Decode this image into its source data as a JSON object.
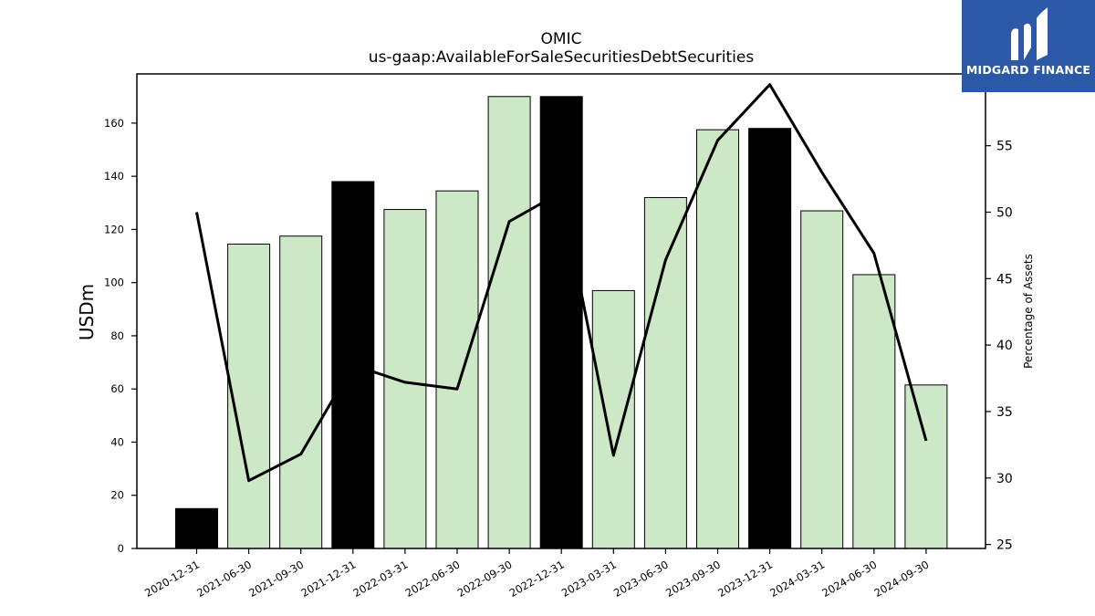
{
  "chart_data": {
    "type": "bar",
    "title": "OMIC",
    "subtitle": "us-gaap:AvailableForSaleSecuritiesDebtSecurities",
    "ylabel": "USDm",
    "y2label": "Percentage of Assets",
    "categories": [
      "2020-12-31",
      "2021-06-30",
      "2021-09-30",
      "2021-12-31",
      "2022-03-31",
      "2022-06-30",
      "2022-09-30",
      "2022-12-31",
      "2023-03-31",
      "2023-06-30",
      "2023-09-30",
      "2023-12-31",
      "2024-03-31",
      "2024-06-30",
      "2024-09-30"
    ],
    "series": [
      {
        "type": "bar",
        "values": [
          15,
          114.5,
          117.5,
          138,
          127.5,
          134.5,
          170,
          170,
          97,
          132,
          157.5,
          158,
          127,
          103,
          61.5
        ]
      },
      {
        "type": "line",
        "axis": "right",
        "values": [
          50,
          29.8,
          31.8,
          38.5,
          37.2,
          36.7,
          49.3,
          51.5,
          31.7,
          46.4,
          55.4,
          59.6,
          53.0,
          46.9,
          32.8
        ]
      }
    ],
    "highlight_indices": [
      0,
      3,
      7,
      11
    ],
    "colors": {
      "bar": "#cce8c6",
      "highlight": "#000000",
      "line": "#000000",
      "edge": "#000000"
    },
    "ylim": [
      0,
      178.5
    ],
    "y_ticks": [
      0,
      20,
      40,
      60,
      80,
      100,
      120,
      140,
      160
    ],
    "y2lim": [
      24.7,
      60.4
    ],
    "y2_ticks": [
      25,
      30,
      35,
      40,
      45,
      50,
      55
    ]
  },
  "logo": {
    "text": "MIDGARD FINANCE",
    "color": "#2b59a8"
  }
}
